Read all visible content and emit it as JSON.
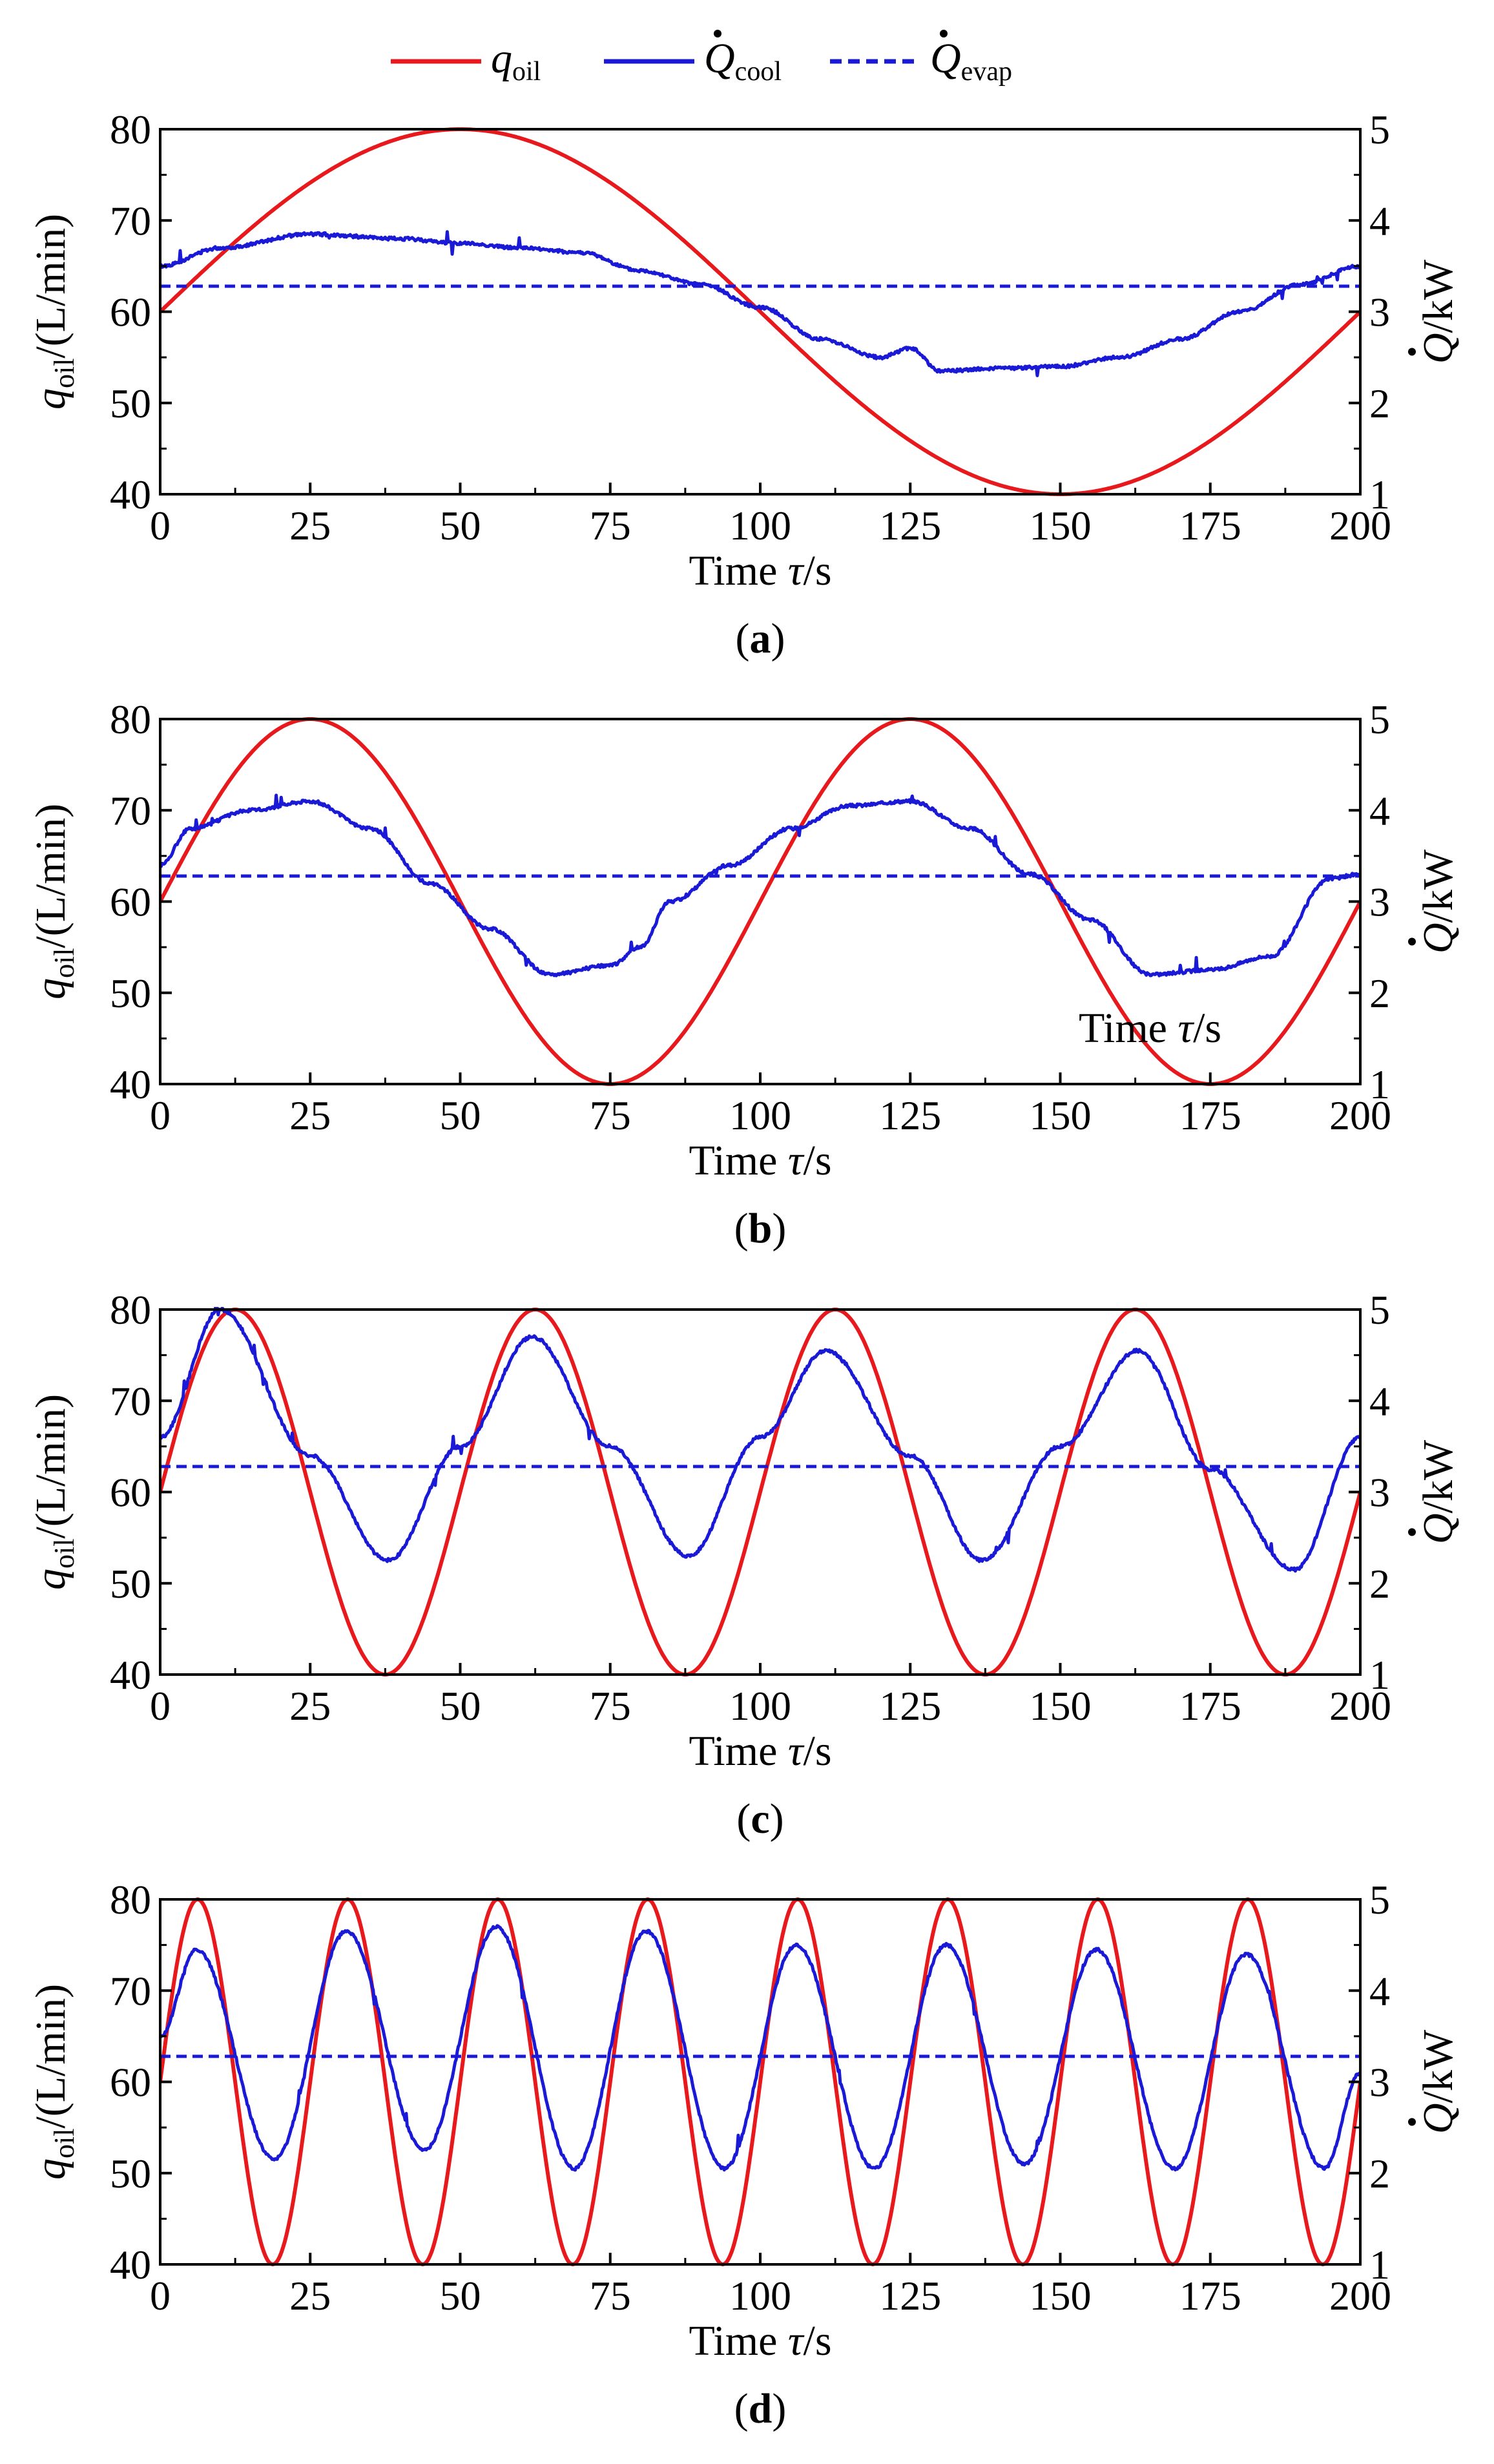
{
  "legend": [
    {
      "symbol": "q",
      "subscript": "oil",
      "style": "solid",
      "color": "#e8191c"
    },
    {
      "symbol": "Q",
      "subscript": "cool",
      "style": "solid",
      "color": "#1a1ad6"
    },
    {
      "symbol": "Q",
      "subscript": "evap",
      "style": "dashed",
      "color": "#1a1ad6"
    }
  ],
  "axes_text": {
    "xlabel_main": "Time ",
    "xlabel_sym": "τ",
    "xlabel_unit": "/s",
    "ylabel_left_sym": "q",
    "ylabel_left_sub": "oil",
    "ylabel_left_unit": "/(L/min)",
    "ylabel_right_sym": "Q",
    "ylabel_right_unit": "/kW"
  },
  "chart_data": [
    {
      "type": "line",
      "panel": "(a)",
      "panel_open": "(",
      "panel_letter": "a",
      "panel_close": ")",
      "period_s": 200,
      "xlim": [
        0,
        200
      ],
      "x_ticks": [
        "0",
        "25",
        "50",
        "75",
        "100",
        "125",
        "150",
        "175",
        "200"
      ],
      "ylim_left": [
        40,
        80
      ],
      "y_ticks_left": [
        "40",
        "50",
        "60",
        "70",
        "80"
      ],
      "ylim_right": [
        1,
        5
      ],
      "y_ticks_right": [
        "1",
        "2",
        "3",
        "4",
        "5"
      ],
      "series": [
        {
          "name": "q_oil",
          "axis": "left",
          "x": [
            0,
            25,
            50,
            75,
            100,
            125,
            150,
            175,
            200
          ],
          "values": [
            60,
            74.1,
            80,
            74.1,
            60,
            45.9,
            40,
            45.9,
            60
          ]
        },
        {
          "name": "Q_cool",
          "axis": "right",
          "x": [
            0,
            10,
            25,
            40,
            50,
            60,
            70,
            80,
            90,
            100,
            110,
            120,
            125,
            130,
            140,
            150,
            160,
            170,
            180,
            190,
            200
          ],
          "values": [
            3.5,
            3.7,
            3.85,
            3.8,
            3.75,
            3.7,
            3.65,
            3.45,
            3.3,
            3.05,
            2.7,
            2.5,
            2.6,
            2.35,
            2.38,
            2.4,
            2.5,
            2.7,
            3.0,
            3.3,
            3.5
          ]
        },
        {
          "name": "Q_evap",
          "axis": "right",
          "x": [
            0,
            200
          ],
          "values": [
            3.28,
            3.28
          ]
        }
      ]
    },
    {
      "type": "line",
      "panel": "(b)",
      "panel_open": "(",
      "panel_letter": "b",
      "panel_close": ")",
      "period_s": 100,
      "annotation": {
        "main": "Time ",
        "sym": "τ",
        "unit": "/s"
      },
      "xlim": [
        0,
        200
      ],
      "x_ticks": [
        "0",
        "25",
        "50",
        "75",
        "100",
        "125",
        "150",
        "175",
        "200"
      ],
      "ylim_left": [
        40,
        80
      ],
      "y_ticks_left": [
        "40",
        "50",
        "60",
        "70",
        "80"
      ],
      "ylim_right": [
        1,
        5
      ],
      "y_ticks_right": [
        "1",
        "2",
        "3",
        "4",
        "5"
      ],
      "series": [
        {
          "name": "q_oil",
          "axis": "left",
          "x": [
            0,
            25,
            50,
            75,
            100,
            125,
            150,
            175,
            200
          ],
          "values": [
            60,
            80,
            60,
            40,
            60,
            80,
            60,
            40,
            60
          ]
        },
        {
          "name": "Q_cool",
          "axis": "right",
          "x": [
            0,
            5,
            15,
            25,
            35,
            45,
            55,
            65,
            75,
            80,
            85,
            95,
            105,
            115,
            125,
            135,
            145,
            155,
            165,
            175,
            185,
            195,
            200
          ],
          "values": [
            3.4,
            3.8,
            4.0,
            4.1,
            3.8,
            3.2,
            2.7,
            2.2,
            2.3,
            2.5,
            3.0,
            3.4,
            3.8,
            4.05,
            4.1,
            3.8,
            3.3,
            2.8,
            2.2,
            2.25,
            2.4,
            3.25,
            3.3
          ]
        },
        {
          "name": "Q_evap",
          "axis": "right",
          "x": [
            0,
            200
          ],
          "values": [
            3.28,
            3.28
          ]
        }
      ]
    },
    {
      "type": "line",
      "panel": "(c)",
      "panel_open": "(",
      "panel_letter": "c",
      "panel_close": ")",
      "period_s": 50,
      "xlim": [
        0,
        200
      ],
      "x_ticks": [
        "0",
        "25",
        "50",
        "75",
        "100",
        "125",
        "150",
        "175",
        "200"
      ],
      "ylim_left": [
        40,
        80
      ],
      "y_ticks_left": [
        "40",
        "50",
        "60",
        "70",
        "80"
      ],
      "ylim_right": [
        1,
        5
      ],
      "y_ticks_right": [
        "1",
        "2",
        "3",
        "4",
        "5"
      ],
      "series": [
        {
          "name": "q_oil",
          "axis": "left",
          "x": [
            0,
            12.5,
            25,
            37.5,
            50,
            62.5,
            75,
            87.5,
            100,
            112.5,
            125,
            137.5,
            150,
            162.5,
            175,
            187.5,
            200
          ],
          "values": [
            60,
            80,
            60,
            40,
            60,
            80,
            60,
            40,
            60,
            80,
            60,
            40,
            60,
            80,
            60,
            40,
            60
          ]
        },
        {
          "name": "Q_cool",
          "axis": "right",
          "x": [
            0,
            10,
            25,
            38,
            50,
            62,
            75,
            88,
            100,
            111,
            125,
            137,
            150,
            163,
            175,
            189,
            200
          ],
          "values": [
            3.6,
            5.0,
            3.4,
            2.25,
            3.5,
            4.7,
            3.5,
            2.3,
            3.6,
            4.55,
            3.4,
            2.25,
            3.5,
            4.55,
            3.25,
            2.15,
            3.6
          ]
        },
        {
          "name": "Q_evap",
          "axis": "right",
          "x": [
            0,
            200
          ],
          "values": [
            3.28,
            3.28
          ]
        }
      ]
    },
    {
      "type": "line",
      "panel": "(d)",
      "panel_open": "(",
      "panel_letter": "d",
      "panel_close": ")",
      "period_s": 25,
      "xlim": [
        0,
        200
      ],
      "x_ticks": [
        "0",
        "25",
        "50",
        "75",
        "100",
        "125",
        "150",
        "175",
        "200"
      ],
      "ylim_left": [
        40,
        80
      ],
      "y_ticks_left": [
        "40",
        "50",
        "60",
        "70",
        "80"
      ],
      "ylim_right": [
        1,
        5
      ],
      "y_ticks_right": [
        "1",
        "2",
        "3",
        "4",
        "5"
      ],
      "series": [
        {
          "name": "q_oil",
          "axis": "left",
          "x": [
            0,
            6.25,
            12.5,
            18.75,
            25,
            31.25,
            37.5,
            43.75,
            50,
            56.25,
            62.5,
            68.75,
            75,
            81.25,
            87.5,
            93.75,
            100,
            106.25,
            112.5,
            118.75,
            125,
            131.25,
            137.5,
            143.75,
            150,
            156.25,
            162.5,
            168.75,
            175,
            181.25,
            187.5,
            193.75,
            200
          ],
          "values": [
            60,
            80,
            60,
            40,
            60,
            80,
            60,
            40,
            60,
            80,
            60,
            40,
            60,
            80,
            60,
            40,
            60,
            80,
            60,
            40,
            60,
            80,
            60,
            40,
            60,
            80,
            60,
            40,
            60,
            80,
            60,
            40,
            60
          ]
        },
        {
          "name": "Q_cool",
          "axis": "right",
          "x": [
            0,
            6,
            19,
            31,
            44,
            56,
            69,
            81,
            94,
            106,
            119,
            131,
            144,
            156,
            169,
            181,
            194,
            200
          ],
          "values": [
            3.5,
            4.45,
            2.15,
            4.65,
            2.25,
            4.7,
            2.05,
            4.65,
            2.05,
            4.5,
            2.05,
            4.5,
            2.1,
            4.45,
            2.05,
            4.4,
            2.05,
            3.1
          ]
        },
        {
          "name": "Q_evap",
          "axis": "right",
          "x": [
            0,
            200
          ],
          "values": [
            3.28,
            3.28
          ]
        }
      ]
    }
  ]
}
